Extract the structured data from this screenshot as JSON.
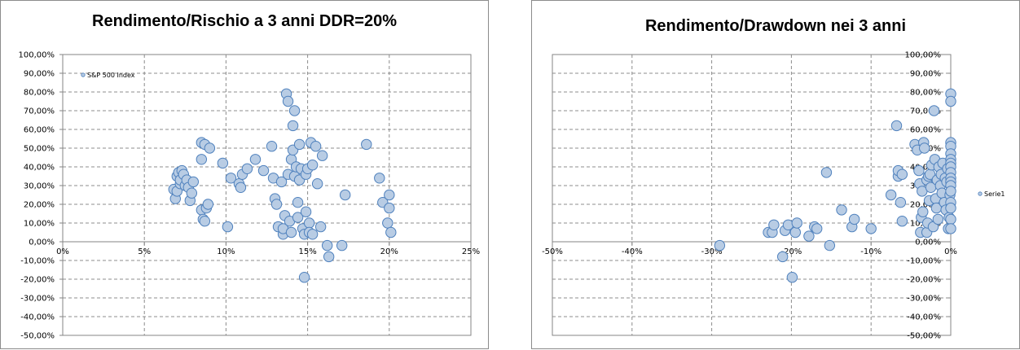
{
  "chart_data": [
    {
      "type": "scatter",
      "title": "Rendimento/Rischio a 3 anni DDR=20%",
      "xlabel": "",
      "ylabel": "",
      "xlim": [
        0,
        0.25
      ],
      "ylim": [
        -0.5,
        1.0
      ],
      "x_ticks": [
        "0%",
        "5%",
        "10%",
        "15%",
        "20%",
        "25%"
      ],
      "y_ticks": [
        "100,00%",
        "90,00%",
        "80,00%",
        "70,00%",
        "60,00%",
        "50,00%",
        "40,00%",
        "30,00%",
        "20,00%",
        "10,00%",
        "0,00%",
        "-10,00%",
        "-20,00%",
        "-30,00%",
        "-40,00%",
        "-50,00%"
      ],
      "grid": true,
      "legend_position": "top-left",
      "marker_color": "#b8cce4",
      "marker_edge": "#4f81bd",
      "series": [
        {
          "name": "S&P 500 Index",
          "points": [
            [
              0.068,
              0.28
            ],
            [
              0.069,
              0.23
            ],
            [
              0.07,
              0.27
            ],
            [
              0.07,
              0.35
            ],
            [
              0.071,
              0.37
            ],
            [
              0.072,
              0.31
            ],
            [
              0.072,
              0.33
            ],
            [
              0.073,
              0.38
            ],
            [
              0.074,
              0.36
            ],
            [
              0.075,
              0.3
            ],
            [
              0.076,
              0.33
            ],
            [
              0.077,
              0.29
            ],
            [
              0.078,
              0.22
            ],
            [
              0.079,
              0.26
            ],
            [
              0.08,
              0.32
            ],
            [
              0.085,
              0.53
            ],
            [
              0.085,
              0.44
            ],
            [
              0.085,
              0.17
            ],
            [
              0.086,
              0.12
            ],
            [
              0.087,
              0.11
            ],
            [
              0.087,
              0.52
            ],
            [
              0.088,
              0.18
            ],
            [
              0.089,
              0.2
            ],
            [
              0.09,
              0.5
            ],
            [
              0.098,
              0.42
            ],
            [
              0.101,
              0.08
            ],
            [
              0.103,
              0.34
            ],
            [
              0.108,
              0.31
            ],
            [
              0.109,
              0.29
            ],
            [
              0.11,
              0.36
            ],
            [
              0.113,
              0.39
            ],
            [
              0.118,
              0.44
            ],
            [
              0.123,
              0.38
            ],
            [
              0.128,
              0.51
            ],
            [
              0.129,
              0.34
            ],
            [
              0.13,
              0.23
            ],
            [
              0.131,
              0.2
            ],
            [
              0.132,
              0.08
            ],
            [
              0.134,
              0.32
            ],
            [
              0.135,
              0.04
            ],
            [
              0.135,
              0.07
            ],
            [
              0.136,
              0.14
            ],
            [
              0.137,
              0.79
            ],
            [
              0.138,
              0.36
            ],
            [
              0.138,
              0.75
            ],
            [
              0.139,
              0.11
            ],
            [
              0.14,
              0.44
            ],
            [
              0.14,
              0.05
            ],
            [
              0.141,
              0.49
            ],
            [
              0.141,
              0.62
            ],
            [
              0.142,
              0.7
            ],
            [
              0.142,
              0.35
            ],
            [
              0.143,
              0.4
            ],
            [
              0.144,
              0.13
            ],
            [
              0.144,
              0.21
            ],
            [
              0.145,
              0.52
            ],
            [
              0.145,
              0.33
            ],
            [
              0.146,
              0.39
            ],
            [
              0.147,
              0.07
            ],
            [
              0.148,
              0.04
            ],
            [
              0.148,
              -0.19
            ],
            [
              0.149,
              0.36
            ],
            [
              0.149,
              0.16
            ],
            [
              0.15,
              0.39
            ],
            [
              0.151,
              0.1
            ],
            [
              0.151,
              0.05
            ],
            [
              0.152,
              0.53
            ],
            [
              0.153,
              0.41
            ],
            [
              0.153,
              0.04
            ],
            [
              0.155,
              0.51
            ],
            [
              0.156,
              0.31
            ],
            [
              0.158,
              0.08
            ],
            [
              0.159,
              0.46
            ],
            [
              0.162,
              -0.02
            ],
            [
              0.163,
              -0.08
            ],
            [
              0.171,
              -0.02
            ],
            [
              0.173,
              0.25
            ],
            [
              0.186,
              0.52
            ],
            [
              0.194,
              0.34
            ],
            [
              0.196,
              0.21
            ],
            [
              0.199,
              0.1
            ],
            [
              0.2,
              0.25
            ],
            [
              0.2,
              0.18
            ],
            [
              0.201,
              0.05
            ]
          ]
        }
      ]
    },
    {
      "type": "scatter",
      "title": "Rendimento/Drawdown nei 3 anni",
      "xlabel": "",
      "ylabel": "",
      "xlim": [
        -0.5,
        0.0
      ],
      "ylim": [
        -0.5,
        1.0
      ],
      "x_ticks": [
        "-50%",
        "-40%",
        "-30%",
        "-20%",
        "-10%",
        "0%"
      ],
      "y_ticks": [
        "100,00%",
        "90,00%",
        "80,00%",
        "70,00%",
        "60,00%",
        "50,00%",
        "40,00%",
        "30,00%",
        "20,00%",
        "10,00%",
        "0,00%",
        "-10,00%",
        "-20,00%",
        "-30,00%",
        "-40,00%",
        "-50,00%"
      ],
      "grid": true,
      "legend_position": "right",
      "marker_color": "#b8cce4",
      "marker_edge": "#4f81bd",
      "series": [
        {
          "name": "Serie1",
          "points": [
            [
              -0.29,
              -0.02
            ],
            [
              -0.229,
              0.05
            ],
            [
              -0.224,
              0.05
            ],
            [
              -0.222,
              0.09
            ],
            [
              -0.211,
              -0.08
            ],
            [
              -0.208,
              0.06
            ],
            [
              -0.204,
              0.09
            ],
            [
              -0.199,
              -0.19
            ],
            [
              -0.195,
              0.05
            ],
            [
              -0.193,
              0.1
            ],
            [
              -0.178,
              0.03
            ],
            [
              -0.171,
              0.08
            ],
            [
              -0.168,
              0.07
            ],
            [
              -0.156,
              0.37
            ],
            [
              -0.152,
              -0.02
            ],
            [
              -0.137,
              0.17
            ],
            [
              -0.124,
              0.08
            ],
            [
              -0.121,
              0.12
            ],
            [
              -0.1,
              0.07
            ],
            [
              -0.075,
              0.25
            ],
            [
              -0.068,
              0.62
            ],
            [
              -0.066,
              0.35
            ],
            [
              -0.066,
              0.38
            ],
            [
              -0.063,
              0.21
            ],
            [
              -0.061,
              0.11
            ],
            [
              -0.061,
              0.36
            ],
            [
              -0.045,
              0.52
            ],
            [
              -0.042,
              0.49
            ],
            [
              -0.04,
              0.38
            ],
            [
              -0.039,
              0.31
            ],
            [
              -0.038,
              0.05
            ],
            [
              -0.037,
              0.13
            ],
            [
              -0.036,
              0.27
            ],
            [
              -0.035,
              0.16
            ],
            [
              -0.034,
              0.53
            ],
            [
              -0.033,
              0.5
            ],
            [
              -0.03,
              0.33
            ],
            [
              -0.03,
              0.05
            ],
            [
              -0.029,
              0.1
            ],
            [
              -0.028,
              0.35
            ],
            [
              -0.027,
              0.22
            ],
            [
              -0.026,
              0.36
            ],
            [
              -0.025,
              0.29
            ],
            [
              -0.024,
              0.41
            ],
            [
              -0.022,
              0.08
            ],
            [
              -0.021,
              0.7
            ],
            [
              -0.02,
              0.44
            ],
            [
              -0.019,
              0.23
            ],
            [
              -0.018,
              0.18
            ],
            [
              -0.017,
              0.33
            ],
            [
              -0.016,
              0.12
            ],
            [
              -0.015,
              0.4
            ],
            [
              -0.013,
              0.3
            ],
            [
              -0.012,
              0.36
            ],
            [
              -0.011,
              0.26
            ],
            [
              -0.01,
              0.42
            ],
            [
              -0.008,
              0.21
            ],
            [
              -0.007,
              0.34
            ],
            [
              -0.006,
              0.17
            ],
            [
              -0.005,
              0.32
            ],
            [
              -0.004,
              0.39
            ],
            [
              -0.003,
              0.07
            ],
            [
              -0.002,
              0.13
            ],
            [
              -0.001,
              0.25
            ],
            [
              0.0,
              0.79
            ],
            [
              0.0,
              0.75
            ],
            [
              0.0,
              0.53
            ],
            [
              0.0,
              0.51
            ],
            [
              0.0,
              0.47
            ],
            [
              0.0,
              0.44
            ],
            [
              0.0,
              0.42
            ],
            [
              0.0,
              0.4
            ],
            [
              0.0,
              0.37
            ],
            [
              0.0,
              0.34
            ],
            [
              0.0,
              0.32
            ],
            [
              0.0,
              0.3
            ],
            [
              0.0,
              0.27
            ],
            [
              0.0,
              0.21
            ],
            [
              0.0,
              0.18
            ],
            [
              0.0,
              0.12
            ],
            [
              0.0,
              0.07
            ]
          ]
        }
      ]
    }
  ]
}
